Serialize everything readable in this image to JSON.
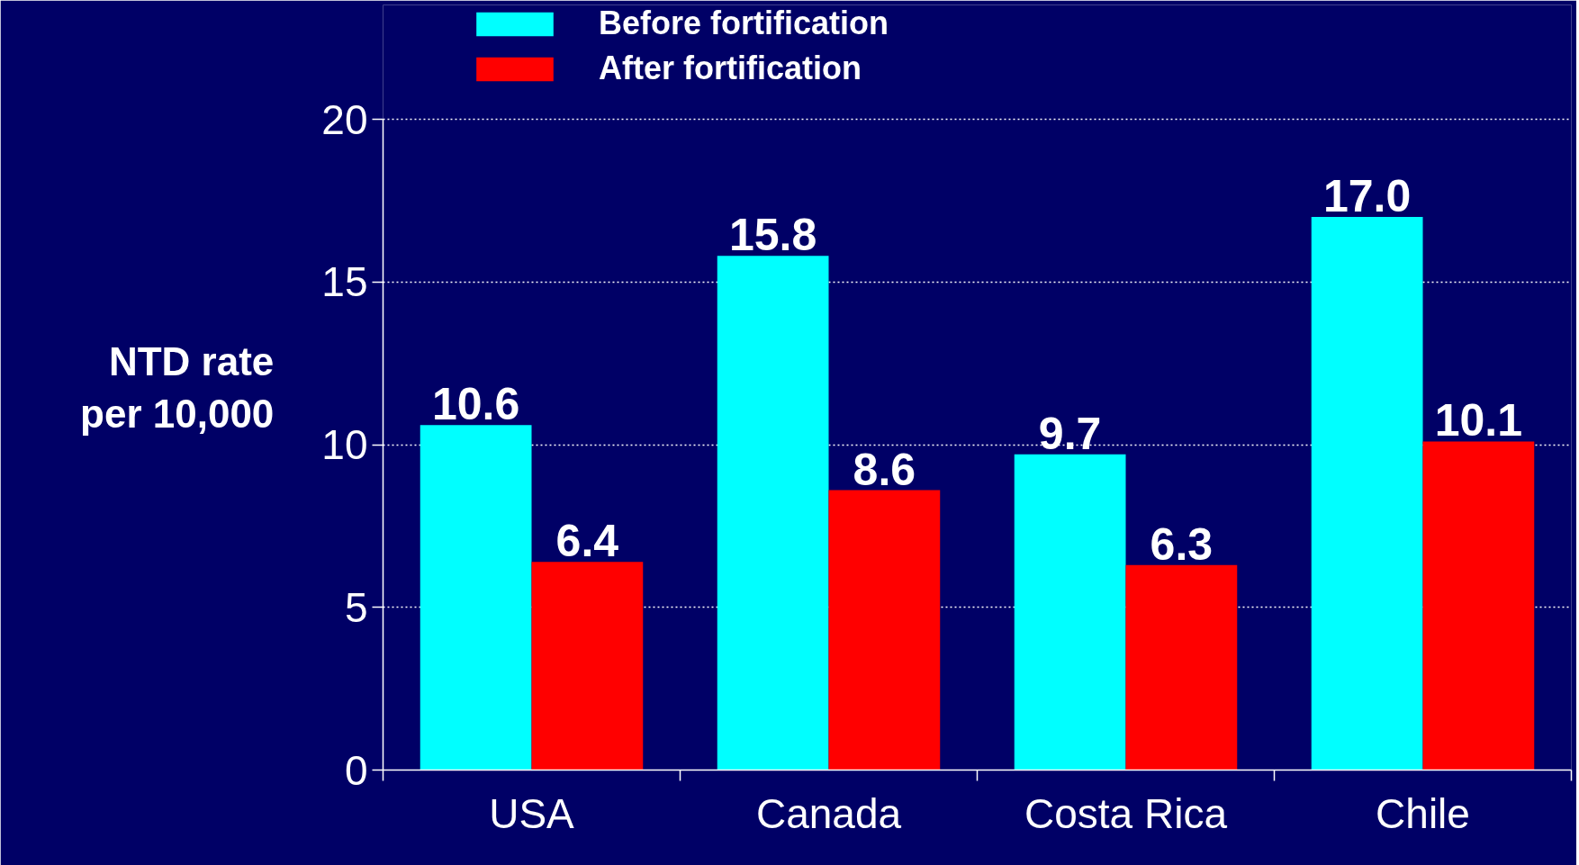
{
  "chart_data": {
    "type": "bar",
    "ylabel": "NTD rate per 10,000",
    "categories": [
      "USA",
      "Canada",
      "Costa Rica",
      "Chile"
    ],
    "series": [
      {
        "name": "Before fortification",
        "color": "#00ffff",
        "values": [
          10.6,
          15.8,
          9.7,
          17.0
        ],
        "value_labels": [
          "10.6",
          "15.8",
          "9.7",
          "17.0"
        ]
      },
      {
        "name": "After fortification",
        "color": "#ff0000",
        "values": [
          6.4,
          8.6,
          6.3,
          10.1
        ],
        "value_labels": [
          "6.4",
          "8.6",
          "6.3",
          "10.1"
        ]
      }
    ],
    "ylim": [
      0,
      20
    ],
    "yticks": [
      0,
      5,
      10,
      15,
      20
    ],
    "grid": "y",
    "legend": "top"
  }
}
